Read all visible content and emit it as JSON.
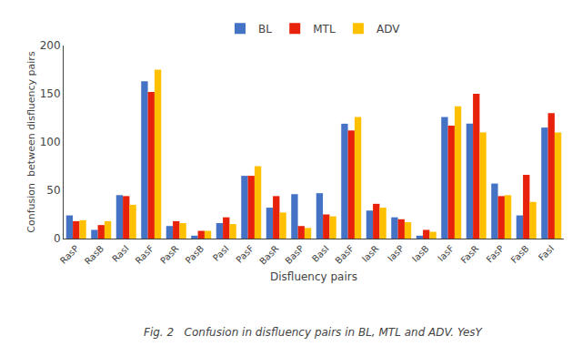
{
  "chart_data": {
    "type": "bar",
    "categories": [
      "RasP",
      "RasB",
      "RasI",
      "RasF",
      "PasR",
      "PasB",
      "PasI",
      "PasF",
      "BasR",
      "BasP",
      "BasI",
      "BasF",
      "IasR",
      "IasP",
      "IasB",
      "IasF",
      "FasR",
      "FasP",
      "FasB",
      "FasI"
    ],
    "series": [
      {
        "name": "BL",
        "color": "#4472C4",
        "values": [
          24,
          9,
          45,
          163,
          13,
          3,
          16,
          65,
          32,
          46,
          47,
          119,
          29,
          22,
          3,
          126,
          119,
          57,
          24,
          115
        ]
      },
      {
        "name": "MTL",
        "color": "#E8220A",
        "values": [
          18,
          14,
          44,
          152,
          18,
          8,
          22,
          65,
          44,
          13,
          25,
          112,
          36,
          20,
          9,
          117,
          150,
          44,
          66,
          130
        ]
      },
      {
        "name": "ADV",
        "color": "#FFC000",
        "values": [
          19,
          18,
          35,
          175,
          16,
          8,
          15,
          75,
          27,
          11,
          23,
          126,
          32,
          17,
          7,
          137,
          110,
          45,
          38,
          110
        ]
      }
    ],
    "xlabel": "Disfluency pairs",
    "ylabel": "Confusion  between disfluency pairs",
    "annotations": [
      {
        "text": "Fig. 2   Confusion in disfluency pairs in BL, MTL and ADV. YesY"
      }
    ],
    "ylim": [
      0,
      200
    ],
    "yticks": [
      0,
      50,
      100,
      150,
      200
    ],
    "legend": "top",
    "grid": false
  }
}
